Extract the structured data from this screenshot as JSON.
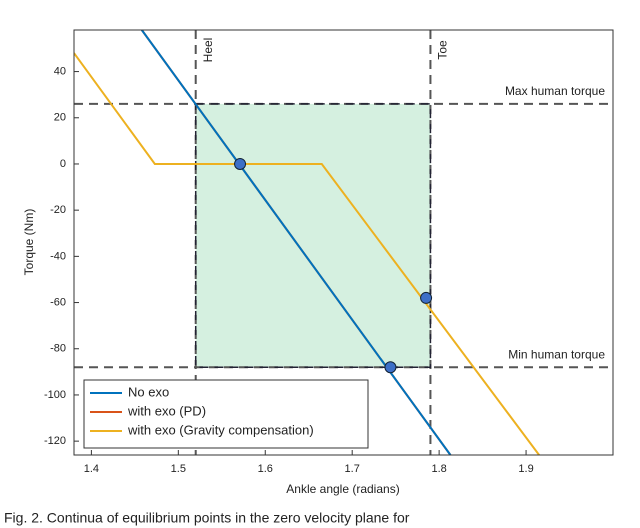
{
  "chart_data": {
    "type": "line",
    "x_label": "Ankle angle (radians)",
    "y_label": "Torque (Nm)",
    "xlim": [
      1.38,
      2.0
    ],
    "ylim": [
      -126,
      58
    ],
    "xticks": [
      1.4,
      1.5,
      1.6,
      1.7,
      1.8,
      1.9
    ],
    "yticks": [
      40,
      20,
      0,
      -20,
      -40,
      -60,
      -80,
      -100,
      -120
    ],
    "series": [
      {
        "name": "No exo",
        "color": "#0072bd",
        "x": [
          1.458,
          1.813
        ],
        "values": [
          58,
          -126
        ]
      },
      {
        "name": "with exo (PD)",
        "color": "#d95319",
        "x": [
          1.458,
          1.813
        ],
        "values": [
          58,
          -126
        ]
      },
      {
        "name": "with exo (Gravity compensation)",
        "color": "#edb120",
        "x": [
          1.38,
          1.473,
          1.665,
          1.915
        ],
        "values": [
          48,
          0,
          0,
          -126
        ]
      }
    ],
    "region": {
      "x": [
        1.52,
        1.79
      ],
      "y": [
        -88,
        26
      ],
      "color": "#d5f0e0"
    },
    "reference_lines": {
      "vertical": [
        {
          "value": 1.52,
          "label": "Heel"
        },
        {
          "value": 1.79,
          "label": "Toe"
        }
      ],
      "horizontal": [
        {
          "value": 26,
          "label": "Max human torque"
        },
        {
          "value": -88,
          "label": "Min human torque"
        }
      ]
    },
    "points": {
      "x": [
        1.571,
        1.785,
        1.744
      ],
      "values": [
        0,
        -58,
        -88
      ],
      "color": "#3d6fc7"
    },
    "legend": "lower-left",
    "caption": "Fig. 2.   Continua of equilibrium points in the zero velocity plane for"
  }
}
